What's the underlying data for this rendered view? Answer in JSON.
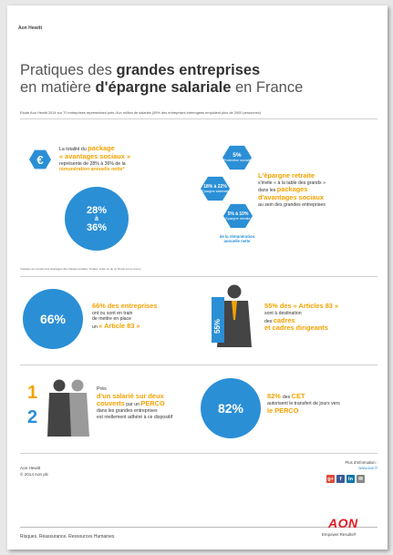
{
  "brand": "Aon Hewitt",
  "title": {
    "line1_a": "Pratiques des ",
    "line1_b": "grandes entreprises",
    "line2_a": "en matière ",
    "line2_b": "d'épargne salariale",
    "line2_c": " en France"
  },
  "study_note": "Etude Aon Hewitt 2014 sur 70 entreprises représentant près d'un million de salariés   (59% des entreprises interrogées emploient plus de 2000 personnes)",
  "package": {
    "icon_text": "€",
    "t1": "La totalité du ",
    "t2": "package",
    "t3": "« avantages sociaux »",
    "t4": "représente de 28% à 36% de la",
    "t5": "rémunération annuelle nette*",
    "circle_top": "28%",
    "circle_mid": "à",
    "circle_bottom": "36%",
    "footnote": "*épargne au complet des avantages des charges sociales, fiscales, éviter en de ce l'impôt sur le revenu"
  },
  "hexes": [
    {
      "value": "5%",
      "label": "Protection sociale"
    },
    {
      "value": "18% à 22%",
      "label": "Epargne salariale"
    },
    {
      "value": "5% à 10%",
      "label": "Epargne retraite"
    }
  ],
  "hex_caption_1": "de la rémunération",
  "hex_caption_2": "annuelle nette",
  "retraite": {
    "t1": "L'épargne retraite",
    "t2": "s'invite « à la table des grands »",
    "t3": "dans les ",
    "t4": "packages",
    "t5": "d'avantages sociaux",
    "t6": "au sein des grandes entreprises"
  },
  "art83a": {
    "circle": "66%",
    "t1": "66% des entreprises",
    "t2": "ont ou sont en train",
    "t3": "de mettre en place",
    "t4": "un ",
    "t5": "« Article 83 »"
  },
  "art83b": {
    "bar_value": "55%",
    "t1": "55% des ",
    "t2": "« Articles 83 »",
    "t3": "sont à destination",
    "t4": "des ",
    "t5": "cadres",
    "t6": "et cadres dirigeants"
  },
  "perco": {
    "num1": "1",
    "num2": "2",
    "t1": "Près",
    "t2": "d'un salarié sur deux",
    "t3": "couverts",
    "t4": " par un ",
    "t5": "PERCO",
    "t6": "dans les grandes entreprises",
    "t7": "est réellement adhéré à ce dispositif"
  },
  "cet": {
    "circle": "82%",
    "t1": "82% ",
    "t2": "des ",
    "t3": "CET",
    "t4": "autorisent le transfert de jours vers",
    "t5": "le PERCO"
  },
  "footer": {
    "company": "Aon Hewitt",
    "copyright": "© 2014 Aon plc",
    "info_label": "Plus d'information :",
    "url": "www.aon.fr",
    "tagline": "Risques. Réassurance. Ressources Humaines",
    "logo": "AON",
    "logo_sub": "Empower Results®"
  },
  "social": [
    {
      "glyph": "g+",
      "color": "#dd4b39",
      "icon": "google-plus-icon"
    },
    {
      "glyph": "f",
      "color": "#3b5998",
      "icon": "facebook-icon"
    },
    {
      "glyph": "in",
      "color": "#0e76a8",
      "icon": "linkedin-icon"
    },
    {
      "glyph": "✉",
      "color": "#888888",
      "icon": "mail-icon"
    }
  ],
  "colors": {
    "blue": "#2b8fd6",
    "orange": "#f2a300",
    "aon_red": "#e11b22"
  }
}
